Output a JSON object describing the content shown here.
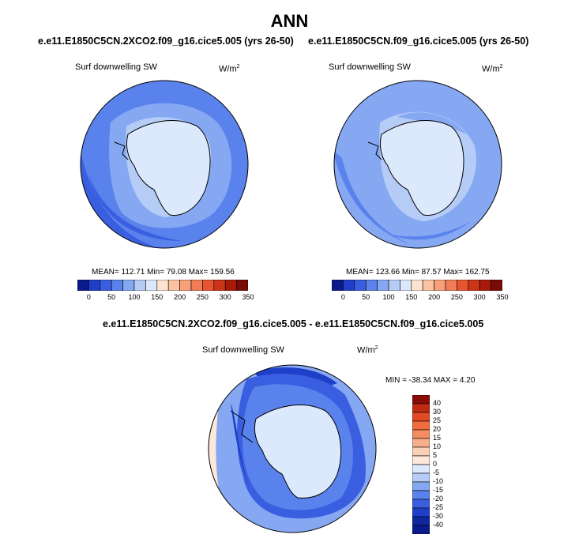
{
  "title": "ANN",
  "panels": [
    {
      "case": "e.e11.E1850C5CN.2XCO2.f09_g16.cice5.005 (yrs 26-50)",
      "field": "Surf downwelling SW",
      "units": "W/m",
      "units_sup": "2",
      "stats": "MEAN= 112.71   Min=  79.08   Max= 159.56"
    },
    {
      "case": "e.e11.E1850C5CN.f09_g16.cice5.005 (yrs 26-50)",
      "field": "Surf downwelling SW",
      "units": "W/m",
      "units_sup": "2",
      "stats": "MEAN= 123.66   Min=  87.57   Max= 162.75"
    }
  ],
  "diff": {
    "title": "e.e11.E1850C5CN.2XCO2.f09_g16.cice5.005 - e.e11.E1850C5CN.f09_g16.cice5.005",
    "field": "Surf downwelling SW",
    "units": "W/m",
    "units_sup": "2",
    "stats": "MIN = -38.34 MAX =   4.20"
  },
  "colorbar_top": {
    "labels": [
      "0",
      "50",
      "100",
      "150",
      "200",
      "250",
      "300",
      "350"
    ],
    "colors": [
      "#0a1a8c",
      "#1f3fc8",
      "#3a5ee0",
      "#5a82ec",
      "#86a8f2",
      "#b4ccf6",
      "#dce8fb",
      "#fde4d0",
      "#fbc3a4",
      "#f7a07a",
      "#f27c55",
      "#e6552f",
      "#cc3418",
      "#a71a0a",
      "#7a0a05"
    ]
  },
  "colorbar_diff": {
    "labels": [
      "40",
      "30",
      "25",
      "20",
      "15",
      "10",
      "5",
      "0",
      "-5",
      "-10",
      "-15",
      "-20",
      "-25",
      "-30",
      "-40"
    ],
    "colors": [
      "#8b0c06",
      "#c02a12",
      "#e14a22",
      "#f26b3c",
      "#f58d62",
      "#f7ae8c",
      "#fad0b6",
      "#fde8da",
      "#dce8fb",
      "#b4ccf6",
      "#86a8f2",
      "#5a82ec",
      "#3a5ee0",
      "#1f3fc8",
      "#10269e",
      "#0a1a8c"
    ]
  }
}
